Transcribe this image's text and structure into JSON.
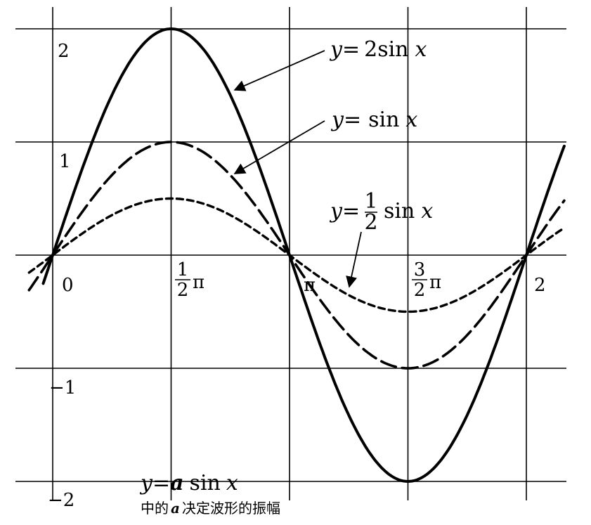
{
  "chart_data": {
    "type": "line",
    "x_unit": "π",
    "xlim": [
      -0.05,
      2.15
    ],
    "ylim": [
      -2.0,
      2.0
    ],
    "grid": true,
    "x_tick_labels": [
      {
        "x": 0.0,
        "text": "0"
      },
      {
        "x": 0.5,
        "num": "1",
        "den": "2",
        "suffix": "π"
      },
      {
        "x": 1.0,
        "text": "π"
      },
      {
        "x": 1.5,
        "num": "3",
        "den": "2",
        "suffix": "π"
      },
      {
        "x": 2.0,
        "text": "2"
      }
    ],
    "y_tick_labels": [
      {
        "y": 2,
        "text": "2"
      },
      {
        "y": 1,
        "text": "1"
      },
      {
        "y": -1,
        "text": "−1"
      },
      {
        "y": -2,
        "text": "−2"
      }
    ],
    "series": [
      {
        "amplitude": 2,
        "style": "solid",
        "x_range": [
          -0.04,
          2.16
        ],
        "x": [
          0,
          0.25,
          0.5,
          0.75,
          1.0,
          1.25,
          1.5,
          1.75,
          2.0
        ],
        "y": [
          0,
          1.414,
          2,
          1.414,
          0,
          -1.414,
          -2,
          -1.414,
          0
        ],
        "label": {
          "prefix": "y=",
          "coef": "2",
          "suffix": "sin"
        }
      },
      {
        "amplitude": 1,
        "style": "dashed",
        "x_range": [
          -0.1,
          2.16
        ],
        "x": [
          0,
          0.25,
          0.5,
          0.75,
          1.0,
          1.25,
          1.5,
          1.75,
          2.0
        ],
        "y": [
          0,
          0.707,
          1,
          0.707,
          0,
          -0.707,
          -1,
          -0.707,
          0
        ],
        "label": {
          "prefix": "y=",
          "coef": "",
          "suffix": "sin"
        }
      },
      {
        "amplitude": 0.5,
        "style": "dotted",
        "x_range": [
          -0.1,
          2.16
        ],
        "x": [
          0,
          0.25,
          0.5,
          0.75,
          1.0,
          1.25,
          1.5,
          1.75,
          2.0
        ],
        "y": [
          0,
          0.354,
          0.5,
          0.354,
          0,
          -0.354,
          -0.5,
          -0.354,
          0
        ],
        "label": {
          "prefix": "y=",
          "frac_num": "1",
          "frac_den": "2",
          "suffix": "sin"
        }
      }
    ],
    "variable": "x",
    "caption": {
      "formula_prefix": "y=",
      "formula_var": "a",
      "formula_suffix": "sin",
      "text_start": "中的",
      "text_var": "a",
      "text_end": "决定波形的振幅"
    }
  }
}
